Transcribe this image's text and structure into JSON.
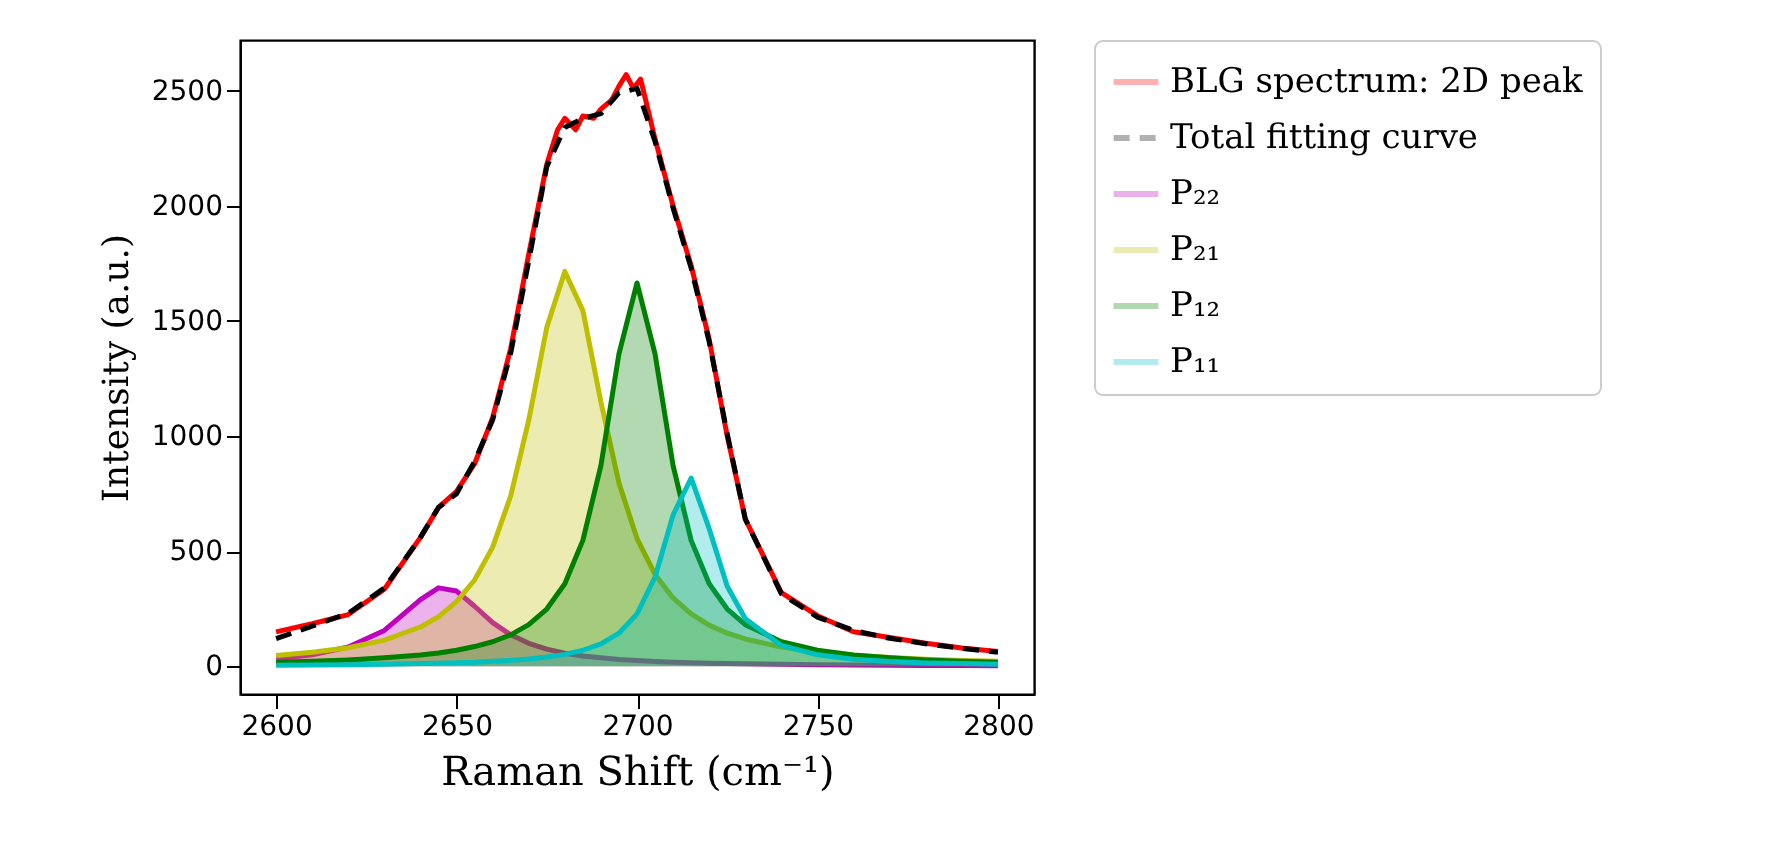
{
  "chart_data": {
    "type": "line",
    "xlabel": "Raman Shift (cm⁻¹)",
    "ylabel": "Intensity (a.u.)",
    "legend": "right",
    "xlim": [
      2590,
      2810
    ],
    "xticks": [
      2600,
      2650,
      2700,
      2750,
      2800
    ],
    "ylim": [
      -120,
      2720
    ],
    "yticks": [
      0,
      500,
      1000,
      1500,
      2000,
      2500
    ],
    "x": [
      2600,
      2610,
      2620,
      2630,
      2640,
      2645,
      2650,
      2655,
      2660,
      2665,
      2670,
      2675,
      2680,
      2685,
      2690,
      2695,
      2700,
      2705,
      2710,
      2715,
      2720,
      2725,
      2730,
      2740,
      2750,
      2760,
      2770,
      2780,
      2790,
      2800
    ],
    "series": [
      {
        "name": "BLG spectrum: 2D peak",
        "color": "#ff0000",
        "x": [
          2600,
          2610,
          2620,
          2630,
          2640,
          2645,
          2650,
          2655,
          2660,
          2665,
          2670,
          2675,
          2678,
          2680,
          2683,
          2685,
          2688,
          2690,
          2693,
          2695,
          2697,
          2699,
          2701,
          2703,
          2705,
          2710,
          2715,
          2720,
          2725,
          2730,
          2740,
          2750,
          2760,
          2770,
          2780,
          2790,
          2800
        ],
        "values": [
          150,
          185,
          225,
          335,
          560,
          690,
          760,
          880,
          1080,
          1380,
          1790,
          2180,
          2330,
          2380,
          2330,
          2390,
          2380,
          2420,
          2460,
          2520,
          2570,
          2510,
          2550,
          2420,
          2290,
          2000,
          1740,
          1420,
          1000,
          640,
          320,
          220,
          150,
          125,
          100,
          80,
          65
        ]
      },
      {
        "name": "Total fitting curve",
        "color": "#000000",
        "line_style": "dashed",
        "values": [
          120,
          175,
          230,
          340,
          560,
          690,
          750,
          890,
          1070,
          1360,
          1760,
          2170,
          2340,
          2380,
          2400,
          2490,
          2510,
          2280,
          1990,
          1730,
          1410,
          1010,
          640,
          315,
          214,
          156,
          122,
          98,
          78,
          61
        ]
      },
      {
        "name": "P₂₂",
        "color": "#bf00bf",
        "type": "area",
        "values": [
          32,
          50,
          84,
          156,
          290,
          341,
          327,
          261,
          190,
          137,
          100,
          75,
          57,
          45,
          37,
          30,
          25,
          21,
          18,
          16,
          14,
          12,
          11,
          9,
          7,
          6,
          5,
          4,
          4,
          3
        ]
      },
      {
        "name": "P₂₁",
        "color": "#bfbf00",
        "type": "area",
        "values": [
          47,
          61,
          81,
          114,
          171,
          216,
          281,
          375,
          518,
          740,
          1069,
          1472,
          1715,
          1545,
          1148,
          796,
          555,
          399,
          297,
          228,
          179,
          144,
          119,
          84,
          62,
          48,
          38,
          31,
          26,
          22
        ]
      },
      {
        "name": "P₁₂",
        "color": "#008000",
        "type": "area",
        "values": [
          18,
          22,
          28,
          37,
          49,
          58,
          70,
          86,
          107,
          137,
          181,
          249,
          359,
          547,
          872,
          1357,
          1665,
          1357,
          872,
          547,
          359,
          249,
          181,
          107,
          70,
          49,
          37,
          28,
          22,
          18
        ]
      },
      {
        "name": "P₁₁",
        "color": "#00bfbf",
        "type": "area",
        "values": [
          5,
          6,
          7,
          9,
          12,
          14,
          16,
          18,
          22,
          26,
          32,
          41,
          52,
          70,
          98,
          144,
          228,
          388,
          658,
          818,
          598,
          348,
          207,
          91,
          50,
          31,
          21,
          15,
          12,
          9
        ]
      }
    ]
  }
}
